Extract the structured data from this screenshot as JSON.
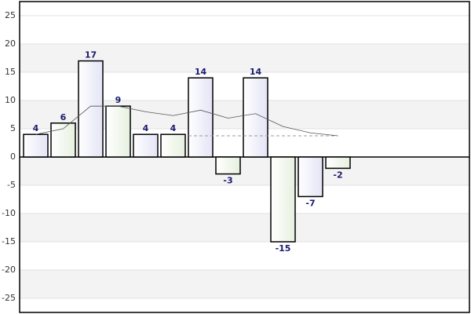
{
  "chart_data": {
    "type": "bar",
    "categories": [
      null,
      null,
      null,
      null,
      null,
      null,
      null,
      null,
      null,
      null,
      null,
      null
    ],
    "values": [
      4,
      6,
      17,
      9,
      4,
      4,
      14,
      -3,
      14,
      -15,
      -7,
      -2
    ],
    "colors": [
      "#e4e4f6",
      "#e6f0df",
      "#e4e4f6",
      "#e6f0df",
      "#e4e4f6",
      "#e6f0df",
      "#e4e4f6",
      "#e6f0df",
      "#e4e4f6",
      "#e6f0df",
      "#e4e4f6",
      "#e6f0df"
    ],
    "label_color": "#1a1a6e",
    "ylim": [
      -27.5,
      27.5
    ],
    "yticks": [
      -25,
      -20,
      -15,
      -10,
      -5,
      0,
      5,
      10,
      15,
      20,
      25
    ],
    "grid": true,
    "average_line": {
      "values": [
        4,
        5,
        9,
        9,
        8,
        7.33,
        8.29,
        6.88,
        7.67,
        5.4,
        4.27,
        3.75
      ],
      "color": "#555555"
    },
    "mean_line": {
      "value": 3.75,
      "color": "#999999"
    }
  }
}
